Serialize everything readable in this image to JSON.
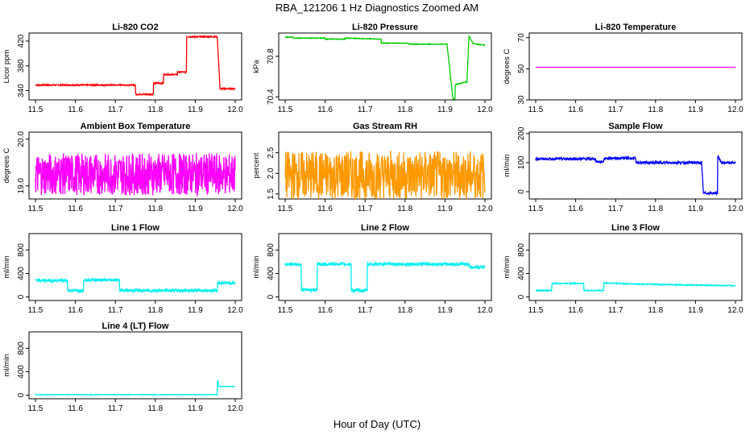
{
  "title": "RBA_121206  1 Hz Diagnostics Zoomed AM",
  "x_axis_label": "Hour of Day (UTC)",
  "chart_data": [
    {
      "type": "line",
      "title": "Li-820 CO2",
      "ylabel": "Licor ppm",
      "color": "#ff0000",
      "xlim": [
        11.5,
        12.0
      ],
      "ylim": [
        325,
        433
      ],
      "xticks": [
        "11.5",
        "11.6",
        "11.7",
        "11.8",
        "11.9",
        "12.0"
      ],
      "yticks": [
        "340",
        "380",
        "420"
      ],
      "noise": 1,
      "x": [
        11.5,
        11.75,
        11.75,
        11.795,
        11.795,
        11.82,
        11.82,
        11.855,
        11.855,
        11.878,
        11.878,
        11.955,
        11.955,
        11.962,
        11.962,
        12.0
      ],
      "y": [
        349,
        349,
        334,
        334,
        352,
        352,
        366,
        366,
        370,
        370,
        427,
        427,
        427,
        343,
        343,
        343
      ]
    },
    {
      "type": "line",
      "title": "Li-820 Pressure",
      "ylabel": "kPa",
      "color": "#00cc00",
      "xlim": [
        11.5,
        12.0
      ],
      "ylim": [
        70.37,
        71.03
      ],
      "xticks": [
        "11.5",
        "11.6",
        "11.7",
        "11.8",
        "11.9",
        "12.0"
      ],
      "yticks": [
        "70.4",
        "70.8"
      ],
      "noise": 0.003,
      "x": [
        11.5,
        11.52,
        11.52,
        11.6,
        11.6,
        11.65,
        11.65,
        11.74,
        11.74,
        11.81,
        11.81,
        11.905,
        11.92,
        11.925,
        11.925,
        11.955,
        11.96,
        11.97,
        11.98,
        12.0
      ],
      "y": [
        70.99,
        70.99,
        70.98,
        70.98,
        70.97,
        70.97,
        70.98,
        70.97,
        70.93,
        70.93,
        70.92,
        70.92,
        70.38,
        70.38,
        70.52,
        70.55,
        71.0,
        70.93,
        70.92,
        70.91
      ]
    },
    {
      "type": "line",
      "title": "Li-820 Temperature",
      "ylabel": "degrees C",
      "color": "#ff00ff",
      "xlim": [
        11.5,
        12.0
      ],
      "ylim": [
        30,
        73
      ],
      "xticks": [
        "11.5",
        "11.6",
        "11.7",
        "11.8",
        "11.9",
        "12.0"
      ],
      "yticks": [
        "30",
        "50",
        "70"
      ],
      "noise": 0,
      "x": [
        11.5,
        12.0
      ],
      "y": [
        51,
        51
      ]
    },
    {
      "type": "line",
      "title": "Ambient Box Temperature",
      "ylabel": "degrees C",
      "color": "#ff00ff",
      "xlim": [
        11.5,
        12.0
      ],
      "ylim": [
        18.72,
        20.15
      ],
      "xticks": [
        "11.5",
        "11.6",
        "11.7",
        "11.8",
        "11.9",
        "12.0"
      ],
      "yticks": [
        "19.0",
        "20.0"
      ],
      "noise": 0.45,
      "x": [
        11.5,
        12.0
      ],
      "y": [
        19.25,
        19.25
      ]
    },
    {
      "type": "line",
      "title": "Gas Stream RH",
      "ylabel": "percent",
      "color": "#ff9900",
      "xlim": [
        11.5,
        12.0
      ],
      "ylim": [
        1.38,
        3.0
      ],
      "xticks": [
        "11.5",
        "11.6",
        "11.7",
        "11.8",
        "11.9",
        "12.0"
      ],
      "yticks": [
        "1.5",
        "2.0",
        "2.5"
      ],
      "noise": 0.6,
      "x": [
        11.5,
        12.0
      ],
      "y": [
        1.95,
        1.95
      ]
    },
    {
      "type": "line",
      "title": "Sample Flow",
      "ylabel": "ml/min",
      "color": "#0000ff",
      "xlim": [
        11.5,
        12.0
      ],
      "ylim": [
        -25,
        205
      ],
      "xticks": [
        "11.5",
        "11.6",
        "11.7",
        "11.8",
        "11.9",
        "12.0"
      ],
      "yticks": [
        "0",
        "100",
        "200"
      ],
      "noise": 4,
      "x": [
        11.5,
        11.65,
        11.65,
        11.67,
        11.67,
        11.75,
        11.75,
        11.915,
        11.92,
        11.955,
        11.955,
        11.96,
        11.965,
        12.0
      ],
      "y": [
        113,
        113,
        103,
        103,
        115,
        115,
        100,
        100,
        -5,
        -5,
        125,
        110,
        100,
        100
      ]
    },
    {
      "type": "line",
      "title": "Line 1 Flow",
      "ylabel": "ml/min",
      "color": "#00eeee",
      "xlim": [
        11.5,
        12.0
      ],
      "ylim": [
        -60,
        1080
      ],
      "xticks": [
        "11.5",
        "11.6",
        "11.7",
        "11.8",
        "11.9",
        "12.0"
      ],
      "yticks": [
        "0",
        "400",
        "800"
      ],
      "noise": 25,
      "x": [
        11.5,
        11.58,
        11.58,
        11.62,
        11.62,
        11.71,
        11.71,
        11.955,
        11.955,
        12.0
      ],
      "y": [
        280,
        280,
        110,
        110,
        290,
        290,
        110,
        110,
        240,
        240
      ]
    },
    {
      "type": "line",
      "title": "Line 2 Flow",
      "ylabel": "ml/min",
      "color": "#00eeee",
      "xlim": [
        11.5,
        12.0
      ],
      "ylim": [
        -60,
        1080
      ],
      "xticks": [
        "11.5",
        "11.6",
        "11.7",
        "11.8",
        "11.9",
        "12.0"
      ],
      "yticks": [
        "0",
        "400",
        "800"
      ],
      "noise": 25,
      "x": [
        11.5,
        11.54,
        11.54,
        11.58,
        11.58,
        11.665,
        11.665,
        11.705,
        11.705,
        11.96,
        11.96,
        12.0
      ],
      "y": [
        560,
        560,
        120,
        120,
        560,
        560,
        110,
        110,
        560,
        560,
        510,
        510
      ]
    },
    {
      "type": "line",
      "title": "Line 3 Flow",
      "ylabel": "ml/min",
      "color": "#00eeee",
      "xlim": [
        11.5,
        12.0
      ],
      "ylim": [
        -60,
        1080
      ],
      "xticks": [
        "11.5",
        "11.6",
        "11.7",
        "11.8",
        "11.9",
        "12.0"
      ],
      "yticks": [
        "0",
        "400",
        "800"
      ],
      "noise": 8,
      "x": [
        11.5,
        11.54,
        11.54,
        11.62,
        11.62,
        11.67,
        11.67,
        11.75,
        12.0
      ],
      "y": [
        110,
        110,
        230,
        230,
        110,
        110,
        240,
        220,
        190
      ]
    },
    {
      "type": "line",
      "title": "Line 4 (LT) Flow",
      "ylabel": "ml/min",
      "color": "#00eeee",
      "xlim": [
        11.5,
        12.0
      ],
      "ylim": [
        -60,
        1080
      ],
      "xticks": [
        "11.5",
        "11.6",
        "11.7",
        "11.8",
        "11.9",
        "12.0"
      ],
      "yticks": [
        "0",
        "400",
        "800"
      ],
      "noise": 4,
      "x": [
        11.5,
        11.955,
        11.955,
        11.958,
        11.96,
        12.0
      ],
      "y": [
        10,
        10,
        290,
        160,
        150,
        150
      ]
    }
  ]
}
